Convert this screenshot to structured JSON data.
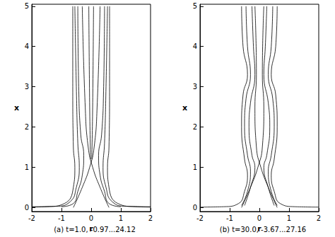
{
  "chart_data": [
    {
      "type": "line",
      "title": "(a) t=1.0, -0.97...24.12",
      "x_label": "r",
      "y_label": "x",
      "xlim": [
        -2,
        2
      ],
      "ylim": [
        -0.1,
        5.05
      ],
      "xticks": [
        -2,
        -1,
        0,
        1,
        2
      ],
      "yticks": [
        0,
        1,
        2,
        3,
        4,
        5
      ],
      "grid": false,
      "series": [
        {
          "color": "#000000",
          "x": [
            0.62,
            0.62,
            0.6,
            0.55,
            0.6,
            0.9,
            1.5,
            2
          ],
          "values": [
            5,
            3,
            1.5,
            1.0,
            0.5,
            0.1,
            0.02,
            0.01
          ]
        },
        {
          "color": "#000000",
          "x": [
            -0.62,
            -0.62,
            -0.6,
            -0.55,
            -0.6,
            -0.9,
            -1.5,
            -2
          ],
          "values": [
            5,
            3,
            1.5,
            1.0,
            0.5,
            0.1,
            0.02,
            0.01
          ]
        },
        {
          "color": "#000000",
          "x": [
            0.55,
            0.5,
            0.45,
            0.4,
            0.5,
            0.7,
            1.2,
            2
          ],
          "values": [
            5,
            3,
            1.6,
            1.0,
            0.5,
            0.15,
            0.03,
            0.02
          ]
        },
        {
          "color": "#000000",
          "x": [
            -0.55,
            -0.5,
            -0.45,
            -0.4,
            -0.5,
            -0.7,
            -1.2,
            -2
          ],
          "values": [
            5,
            3,
            1.6,
            1.0,
            0.5,
            0.15,
            0.03,
            0.02
          ]
        },
        {
          "color": "#000000",
          "x": [
            0.45,
            0.42,
            0.35,
            0.25,
            0.3,
            0.45,
            0.6,
            1.0
          ],
          "values": [
            5,
            3,
            1.8,
            1.3,
            0.8,
            0.4,
            0.1,
            0.02
          ]
        },
        {
          "color": "#000000",
          "x": [
            -0.45,
            -0.42,
            -0.35,
            -0.25,
            -0.3,
            -0.45,
            -0.6,
            -1.0
          ],
          "values": [
            5,
            3,
            1.8,
            1.3,
            0.8,
            0.4,
            0.1,
            0.02
          ]
        },
        {
          "color": "#000000",
          "x": [
            -0.6,
            -0.3,
            -0.05,
            0.1,
            0.2,
            0.3
          ],
          "values": [
            0,
            0.5,
            1.0,
            1.5,
            2.5,
            5
          ]
        },
        {
          "color": "#000000",
          "x": [
            0.6,
            0.3,
            0.05,
            -0.1,
            -0.2,
            -0.3
          ],
          "values": [
            0,
            0.5,
            1.0,
            1.5,
            2.5,
            5
          ]
        },
        {
          "color": "#000000",
          "x": [
            0.08,
            0.05,
            0.02
          ],
          "values": [
            5,
            2.5,
            1.2
          ]
        },
        {
          "color": "#000000",
          "x": [
            -0.08,
            -0.05,
            -0.02
          ],
          "values": [
            5,
            2.5,
            1.2
          ]
        }
      ]
    },
    {
      "type": "line",
      "title": "(b) t=30.0, -3.67...27.16",
      "x_label": "r",
      "y_label": "x",
      "xlim": [
        -2,
        2
      ],
      "ylim": [
        -0.1,
        5.05
      ],
      "xticks": [
        -2,
        -1,
        0,
        1,
        2
      ],
      "yticks": [
        0,
        1,
        2,
        3,
        4,
        5
      ],
      "grid": false,
      "series": [
        {
          "color": "#000000",
          "x": [
            0.6,
            0.55,
            0.4,
            0.55,
            0.6,
            0.5,
            0.4,
            0.5,
            0.7,
            1.2,
            2
          ],
          "values": [
            5,
            4,
            3.3,
            2.8,
            2,
            1.2,
            0.8,
            0.4,
            0.1,
            0.02,
            0.01
          ]
        },
        {
          "color": "#000000",
          "x": [
            -0.6,
            -0.55,
            -0.4,
            -0.55,
            -0.6,
            -0.5,
            -0.4,
            -0.5,
            -0.7,
            -1.2,
            -2
          ],
          "values": [
            5,
            4,
            3.3,
            2.8,
            2,
            1.2,
            0.8,
            0.4,
            0.1,
            0.02,
            0.01
          ]
        },
        {
          "color": "#000000",
          "x": [
            0.45,
            0.4,
            0.3,
            0.45,
            0.5,
            0.4,
            0.3,
            0.4,
            0.6
          ],
          "values": [
            5,
            4,
            3.3,
            2.7,
            2,
            1.3,
            0.9,
            0.4,
            0.05
          ]
        },
        {
          "color": "#000000",
          "x": [
            -0.45,
            -0.4,
            -0.3,
            -0.45,
            -0.5,
            -0.4,
            -0.3,
            -0.4,
            -0.6
          ],
          "values": [
            5,
            4,
            3.3,
            2.7,
            2,
            1.3,
            0.9,
            0.4,
            0.05
          ]
        },
        {
          "color": "#000000",
          "x": [
            0.25,
            0.2,
            0.15,
            0.3,
            0.35,
            0.25,
            0.15,
            0.3,
            0.5
          ],
          "values": [
            5,
            4,
            3.3,
            2.6,
            2,
            1.3,
            1.0,
            0.5,
            0.05
          ]
        },
        {
          "color": "#000000",
          "x": [
            -0.25,
            -0.2,
            -0.15,
            -0.3,
            -0.35,
            -0.25,
            -0.15,
            -0.3,
            -0.5
          ],
          "values": [
            5,
            4,
            3.3,
            2.6,
            2,
            1.3,
            1.0,
            0.5,
            0.05
          ]
        },
        {
          "color": "#000000",
          "x": [
            -0.6,
            -0.3,
            -0.05,
            0.1,
            0.15,
            0.1,
            0.15
          ],
          "values": [
            0,
            0.5,
            1.0,
            1.5,
            2.5,
            3.3,
            5
          ]
        },
        {
          "color": "#000000",
          "x": [
            0.6,
            0.3,
            0.05,
            -0.1,
            -0.15,
            -0.1,
            -0.15
          ],
          "values": [
            0,
            0.5,
            1.0,
            1.5,
            2.5,
            3.3,
            5
          ]
        }
      ]
    }
  ]
}
